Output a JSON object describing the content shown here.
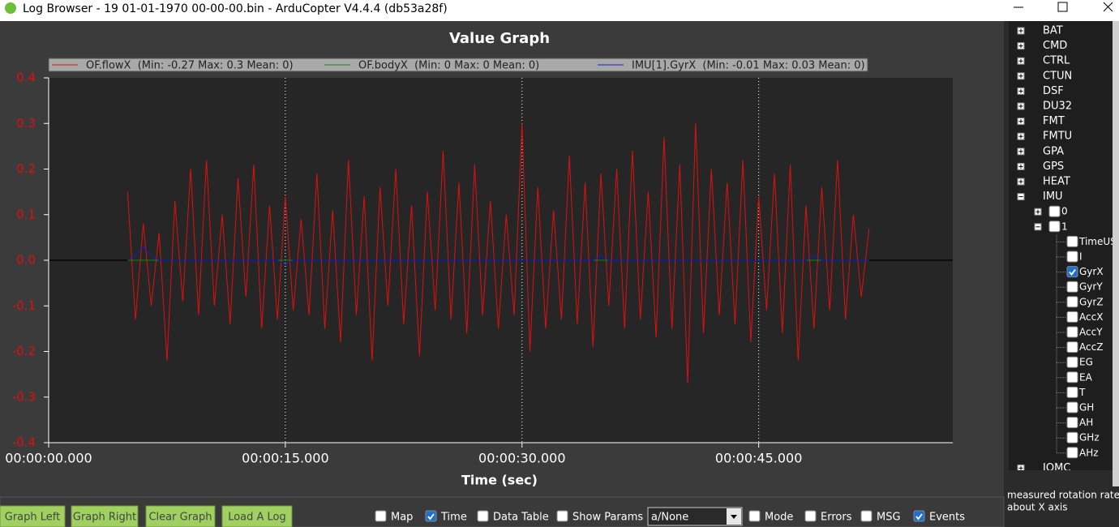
{
  "window": {
    "title": "Log Browser - 19 01-01-1970 00-00-00.bin - ArduCopter V4.4.4 (db53a28f)"
  },
  "chart_data": {
    "type": "line",
    "title": "Value Graph",
    "x_label": "Time (sec)",
    "x": [
      5,
      5.5,
      6,
      6.5,
      7,
      7.5,
      8,
      8.5,
      9,
      9.5,
      10,
      10.5,
      11,
      11.5,
      12,
      12.5,
      13,
      13.5,
      14,
      14.5,
      15,
      15.5,
      16,
      16.5,
      17,
      17.5,
      18,
      18.5,
      19,
      19.5,
      20,
      20.5,
      21,
      21.5,
      22,
      22.5,
      23,
      23.5,
      24,
      24.5,
      25,
      25.5,
      26,
      26.5,
      27,
      27.5,
      28,
      28.5,
      29,
      29.5,
      30,
      30.5,
      31,
      31.5,
      32,
      32.5,
      33,
      33.5,
      34,
      34.5,
      35,
      35.5,
      36,
      36.5,
      37,
      37.5,
      38,
      38.5,
      39,
      39.5,
      40,
      40.5,
      41,
      41.5,
      42,
      42.5,
      43,
      43.5,
      44,
      44.5,
      45,
      45.5,
      46,
      46.5,
      47,
      47.5,
      48,
      48.5,
      49,
      49.5,
      50,
      50.5,
      51,
      51.5,
      52
    ],
    "series": [
      {
        "name": "OF.flowX  (Min: -0.27 Max: 0.3 Mean: 0)",
        "color": "#e01010",
        "values": [
          0.15,
          -0.13,
          0.08,
          -0.1,
          0.06,
          -0.22,
          0.13,
          -0.09,
          0.2,
          -0.12,
          0.22,
          -0.1,
          0.1,
          -0.14,
          0.18,
          -0.08,
          0.21,
          -0.15,
          0.12,
          -0.13,
          0.14,
          -0.11,
          0.09,
          -0.12,
          0.19,
          -0.15,
          0.11,
          -0.18,
          0.22,
          -0.12,
          0.14,
          -0.22,
          0.16,
          -0.1,
          0.2,
          -0.14,
          0.12,
          -0.21,
          0.15,
          -0.11,
          0.24,
          -0.13,
          0.17,
          -0.16,
          0.21,
          -0.12,
          0.13,
          -0.15,
          0.1,
          -0.12,
          0.3,
          -0.2,
          0.16,
          -0.15,
          0.11,
          -0.13,
          0.23,
          -0.14,
          0.17,
          -0.19,
          0.19,
          -0.1,
          0.2,
          -0.15,
          0.24,
          -0.13,
          0.15,
          -0.17,
          0.27,
          -0.15,
          0.21,
          -0.27,
          0.3,
          -0.16,
          0.2,
          -0.12,
          0.17,
          -0.14,
          0.22,
          -0.18,
          0.14,
          -0.11,
          0.19,
          -0.16,
          0.21,
          -0.22,
          0.12,
          -0.15,
          0.16,
          -0.11,
          0.22,
          -0.13,
          0.1,
          -0.08,
          0.07
        ]
      },
      {
        "name": "OF.bodyX  (Min: 0 Max: 0 Mean: 0)",
        "color": "#1a8a1a",
        "values": [
          0,
          0,
          0,
          0,
          0,
          0,
          0,
          0,
          0,
          0,
          0,
          0,
          0,
          0,
          0,
          0,
          0,
          0,
          0,
          0,
          0,
          0,
          0,
          0,
          0,
          0,
          0,
          0,
          0,
          0,
          0,
          0,
          0,
          0,
          0,
          0,
          0,
          0,
          0,
          0,
          0,
          0,
          0,
          0,
          0,
          0,
          0,
          0,
          0,
          0,
          0,
          0,
          0,
          0,
          0,
          0,
          0,
          0,
          0,
          0,
          0,
          0,
          0,
          0,
          0,
          0,
          0,
          0,
          0,
          0,
          0,
          0,
          0,
          0,
          0,
          0,
          0,
          0,
          0,
          0,
          0,
          0,
          0,
          0,
          0,
          0,
          0,
          0,
          0,
          0,
          0,
          0,
          0,
          0,
          0
        ]
      },
      {
        "name": "IMU[1].GyrX  (Min: -0.01 Max: 0.03 Mean: 0)",
        "color": "#1020d0",
        "values": [
          0,
          0.01,
          0.03,
          0.01,
          0,
          0,
          0,
          0,
          0,
          0,
          0,
          0,
          0,
          0,
          0,
          0,
          0,
          0,
          0,
          0,
          -0.01,
          0,
          0,
          0,
          0,
          0,
          0,
          0,
          0,
          0,
          0,
          0,
          0,
          0,
          0,
          0,
          0,
          0,
          0,
          0,
          0,
          0,
          0,
          0,
          0,
          0,
          0,
          0,
          0,
          0,
          0,
          0,
          0,
          0,
          0,
          0,
          0,
          0,
          0,
          0,
          0.01,
          0,
          0,
          0,
          0,
          0,
          0,
          0,
          0,
          0,
          0,
          0,
          0,
          0,
          0,
          0,
          0,
          0,
          0,
          0,
          0,
          0,
          0,
          0,
          0,
          0,
          0,
          0.01,
          0,
          0,
          0,
          0,
          0,
          0,
          0
        ]
      }
    ],
    "xlim": [
      0,
      57.3
    ],
    "xticks": [
      {
        "value": 0,
        "label": "00:00:00.000"
      },
      {
        "value": 15,
        "label": "00:00:15.000"
      },
      {
        "value": 30,
        "label": "00:00:30.000"
      },
      {
        "value": 45,
        "label": "00:00:45.000"
      }
    ],
    "ylim": [
      -0.4,
      0.4
    ],
    "yticks": [
      -0.4,
      -0.3,
      -0.2,
      -0.1,
      {
        "value": 0,
        "label": "0.0"
      },
      0.1,
      0.2,
      0.3,
      0.4
    ],
    "grid_x": true,
    "zero_line": true
  },
  "tree": {
    "top": [
      "BAT",
      "CMD",
      "CTRL",
      "CTUN",
      "DSF",
      "DU32",
      "FMT",
      "FMTU",
      "GPA",
      "GPS",
      "HEAT",
      "IMU"
    ],
    "imu": [
      "0",
      "1"
    ],
    "fields": [
      {
        "label": "TimeUS",
        "checked": false
      },
      {
        "label": "I",
        "checked": false
      },
      {
        "label": "GyrX",
        "checked": true
      },
      {
        "label": "GyrY",
        "checked": false
      },
      {
        "label": "GyrZ",
        "checked": false
      },
      {
        "label": "AccX",
        "checked": false
      },
      {
        "label": "AccY",
        "checked": false
      },
      {
        "label": "AccZ",
        "checked": false
      },
      {
        "label": "EG",
        "checked": false
      },
      {
        "label": "EA",
        "checked": false
      },
      {
        "label": "T",
        "checked": false
      },
      {
        "label": "GH",
        "checked": false
      },
      {
        "label": "AH",
        "checked": false
      },
      {
        "label": "GHz",
        "checked": false
      },
      {
        "label": "AHz",
        "checked": false
      }
    ],
    "after": [
      "IOMC"
    ]
  },
  "description": [
    "measured rotation rate",
    "about X axis"
  ],
  "buttons": [
    "Graph Left",
    "Graph Right",
    "Clear Graph",
    "Load A Log"
  ],
  "options": [
    {
      "label": "Map",
      "checked": false
    },
    {
      "label": "Time",
      "checked": true
    },
    {
      "label": "Data Table",
      "checked": false
    },
    {
      "label": "Show Params",
      "checked": false
    }
  ],
  "dropdown": "a/None",
  "filters": [
    {
      "label": "Mode",
      "checked": false
    },
    {
      "label": "Errors",
      "checked": false
    },
    {
      "label": "MSG",
      "checked": false
    },
    {
      "label": "Events",
      "checked": true
    }
  ]
}
